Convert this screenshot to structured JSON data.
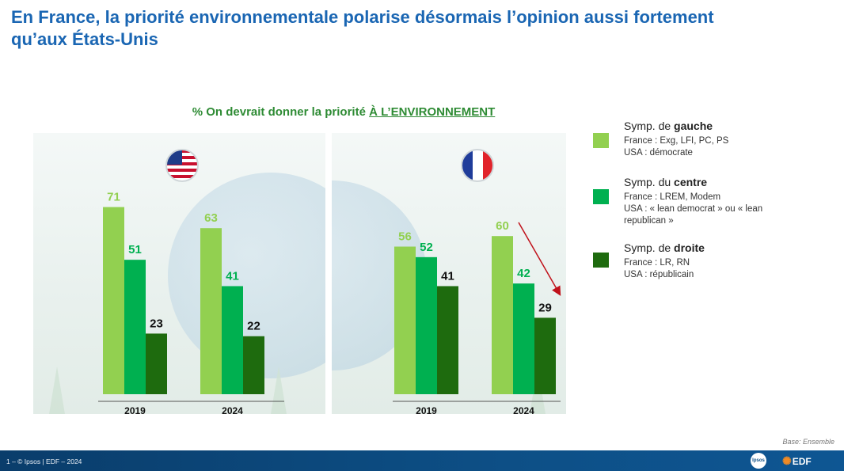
{
  "title": "En France, la priorité environnementale polarise désormais l’opinion aussi fortement qu’aux États-Unis",
  "chart_data": {
    "type": "bar",
    "title_prefix": "% On devrait donner la priorité ",
    "title_emphasis": "À L’ENVIRONNEMENT",
    "ylim": [
      0,
      100
    ],
    "grid": false,
    "legend_position": "right",
    "colors": {
      "gauche": "#92d050",
      "centre": "#00b050",
      "droite": "#1e6b0e"
    },
    "panels": [
      {
        "country": "USA",
        "flag": "us-flag",
        "categories": [
          "2019",
          "2024"
        ],
        "series": [
          {
            "key": "gauche",
            "values": [
              71,
              63
            ]
          },
          {
            "key": "centre",
            "values": [
              51,
              41
            ]
          },
          {
            "key": "droite",
            "values": [
              23,
              22
            ]
          }
        ]
      },
      {
        "country": "France",
        "flag": "fr-flag",
        "categories": [
          "2019",
          "2024"
        ],
        "series": [
          {
            "key": "gauche",
            "values": [
              56,
              60
            ]
          },
          {
            "key": "centre",
            "values": [
              52,
              42
            ]
          },
          {
            "key": "droite",
            "values": [
              41,
              29
            ]
          }
        ],
        "annotation": "red arrow pointing down from 60 to 29 (2024)"
      }
    ]
  },
  "legend": [
    {
      "key": "gauche",
      "title_prefix": "Symp. de ",
      "title_bold": "gauche",
      "lines": [
        "France : Exg, LFI, PC, PS",
        "USA : démocrate"
      ]
    },
    {
      "key": "centre",
      "title_prefix": "Symp. du ",
      "title_bold": "centre",
      "lines": [
        "France : LREM, Modem",
        "USA : « lean democrat » ou « lean republican »"
      ]
    },
    {
      "key": "droite",
      "title_prefix": "Symp. de ",
      "title_bold": "droite",
      "lines": [
        "France : LR, RN",
        "USA : républicain"
      ]
    }
  ],
  "base_note": "Base: Ensemble",
  "footer": {
    "text": "1 – © Ipsos | EDF – 2024",
    "logo_ipsos": "Ipsos",
    "logo_edf": "EDF"
  }
}
